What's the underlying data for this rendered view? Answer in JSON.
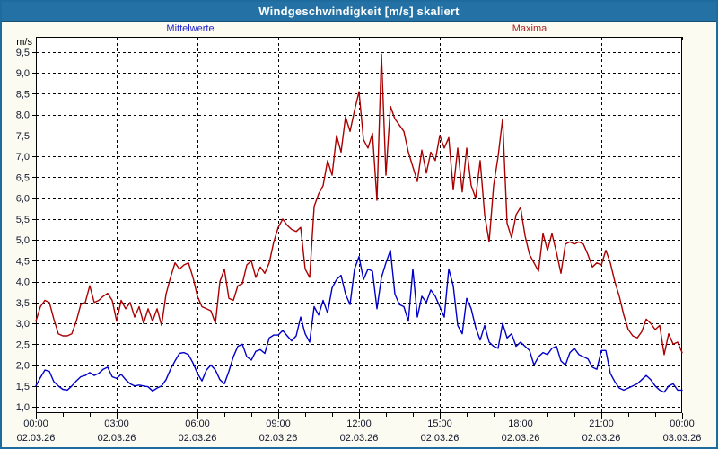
{
  "window": {
    "title": "Windgeschwindigkeit [m/s] skaliert"
  },
  "axes": {
    "unit_label": "m/s",
    "y_ticks": [
      {
        "label": "9,5",
        "value": 9.5
      },
      {
        "label": "9,0",
        "value": 9.0
      },
      {
        "label": "8,5",
        "value": 8.5
      },
      {
        "label": "8,0",
        "value": 8.0
      },
      {
        "label": "7,5",
        "value": 7.5
      },
      {
        "label": "7,0",
        "value": 7.0
      },
      {
        "label": "6,5",
        "value": 6.5
      },
      {
        "label": "6,0",
        "value": 6.0
      },
      {
        "label": "5,5",
        "value": 5.5
      },
      {
        "label": "5,0",
        "value": 5.0
      },
      {
        "label": "4,5",
        "value": 4.5
      },
      {
        "label": "4,0",
        "value": 4.0
      },
      {
        "label": "3,5",
        "value": 3.5
      },
      {
        "label": "3,0",
        "value": 3.0
      },
      {
        "label": "2,5",
        "value": 2.5
      },
      {
        "label": "2,0",
        "value": 2.0
      },
      {
        "label": "1,5",
        "value": 1.5
      },
      {
        "label": "1,0",
        "value": 1.0
      }
    ],
    "x_ticks": [
      {
        "hour": 0,
        "time": "00:00",
        "date": "02.03.26"
      },
      {
        "hour": 3,
        "time": "03:00",
        "date": "02.03.26"
      },
      {
        "hour": 6,
        "time": "06:00",
        "date": "02.03.26"
      },
      {
        "hour": 9,
        "time": "09:00",
        "date": "02.03.26"
      },
      {
        "hour": 12,
        "time": "12:00",
        "date": "02.03.26"
      },
      {
        "hour": 15,
        "time": "15:00",
        "date": "02.03.26"
      },
      {
        "hour": 18,
        "time": "18:00",
        "date": "02.03.26"
      },
      {
        "hour": 21,
        "time": "21:00",
        "date": "02.03.26"
      },
      {
        "hour": 24,
        "time": "00:00",
        "date": "03.03.26"
      }
    ]
  },
  "chart_data": {
    "type": "line",
    "title": "Windgeschwindigkeit [m/s] skaliert",
    "xlabel": "",
    "ylabel": "m/s",
    "x_range_hours": [
      0,
      24
    ],
    "ylim": [
      0.85,
      9.9
    ],
    "grid": "dashed, horizontal every 0.5 m/s, vertical every 3 h",
    "legend_position": "top, outside plot",
    "series": [
      {
        "name": "Mittelwerte",
        "color": "#2323CC",
        "line_color": "#0000C8",
        "interval_minutes": 10,
        "start_hour": 0,
        "values": [
          1.5,
          1.7,
          1.88,
          1.85,
          1.6,
          1.5,
          1.42,
          1.4,
          1.5,
          1.62,
          1.72,
          1.75,
          1.82,
          1.75,
          1.8,
          1.9,
          1.95,
          1.72,
          1.68,
          1.78,
          1.65,
          1.55,
          1.5,
          1.52,
          1.5,
          1.48,
          1.38,
          1.45,
          1.5,
          1.65,
          1.9,
          2.1,
          2.28,
          2.3,
          2.25,
          2.05,
          1.8,
          1.62,
          1.88,
          2.0,
          1.88,
          1.65,
          1.55,
          1.85,
          2.2,
          2.45,
          2.5,
          2.2,
          2.12,
          2.33,
          2.37,
          2.28,
          2.65,
          2.72,
          2.72,
          2.83,
          2.7,
          2.58,
          2.7,
          3.15,
          2.75,
          2.55,
          3.4,
          3.2,
          3.55,
          3.25,
          3.85,
          4.05,
          4.15,
          3.7,
          3.45,
          4.3,
          4.6,
          4.05,
          4.3,
          4.25,
          3.35,
          4.1,
          4.45,
          4.75,
          3.7,
          3.45,
          3.4,
          3.05,
          4.3,
          3.15,
          3.65,
          3.5,
          3.8,
          3.65,
          3.4,
          3.15,
          4.3,
          3.9,
          2.95,
          2.75,
          3.6,
          3.35,
          2.9,
          2.6,
          2.95,
          2.55,
          2.45,
          2.4,
          3.0,
          2.65,
          2.75,
          2.45,
          2.55,
          2.45,
          2.35,
          2.0,
          2.2,
          2.3,
          2.25,
          2.4,
          2.45,
          2.1,
          2.0,
          2.3,
          2.4,
          2.25,
          2.2,
          2.15,
          1.95,
          1.9,
          2.35,
          2.35,
          1.8,
          1.6,
          1.45,
          1.4,
          1.45,
          1.5,
          1.55,
          1.65,
          1.75,
          1.65,
          1.5,
          1.4,
          1.35,
          1.5,
          1.55,
          1.4,
          1.4
        ]
      },
      {
        "name": "Maxima",
        "color": "#AA2222",
        "line_color": "#AA0000",
        "interval_minutes": 10,
        "start_hour": 0,
        "values": [
          3.05,
          3.4,
          3.55,
          3.5,
          3.1,
          2.75,
          2.7,
          2.7,
          2.75,
          3.05,
          3.45,
          3.5,
          3.9,
          3.5,
          3.55,
          3.65,
          3.72,
          3.55,
          3.05,
          3.55,
          3.35,
          3.5,
          3.15,
          3.4,
          3.0,
          3.35,
          3.05,
          3.35,
          2.95,
          3.7,
          4.1,
          4.45,
          4.3,
          4.4,
          4.45,
          4.1,
          3.65,
          3.4,
          3.35,
          3.3,
          3.0,
          4.0,
          4.3,
          3.6,
          3.55,
          3.9,
          3.95,
          4.4,
          4.5,
          4.1,
          4.35,
          4.2,
          4.45,
          4.95,
          5.3,
          5.5,
          5.35,
          5.25,
          5.2,
          5.3,
          4.3,
          4.1,
          5.8,
          6.1,
          6.3,
          6.9,
          6.55,
          7.5,
          7.1,
          7.95,
          7.6,
          8.1,
          8.55,
          7.4,
          7.2,
          7.55,
          5.95,
          9.45,
          6.55,
          8.2,
          7.9,
          7.75,
          7.6,
          7.1,
          6.75,
          6.4,
          7.15,
          6.6,
          7.1,
          6.9,
          7.5,
          7.2,
          7.45,
          6.2,
          7.2,
          6.15,
          7.2,
          6.3,
          6.0,
          6.9,
          5.6,
          4.95,
          6.3,
          7.0,
          7.9,
          5.4,
          5.05,
          5.6,
          5.78,
          5.1,
          4.65,
          4.45,
          4.25,
          5.15,
          4.75,
          5.15,
          4.7,
          4.2,
          4.9,
          4.95,
          4.9,
          4.95,
          4.9,
          4.65,
          4.35,
          4.45,
          4.4,
          4.75,
          4.45,
          4.0,
          3.65,
          3.2,
          2.85,
          2.7,
          2.65,
          2.8,
          3.1,
          3.0,
          2.85,
          2.95,
          2.25,
          2.75,
          2.5,
          2.55,
          2.3
        ]
      }
    ]
  }
}
